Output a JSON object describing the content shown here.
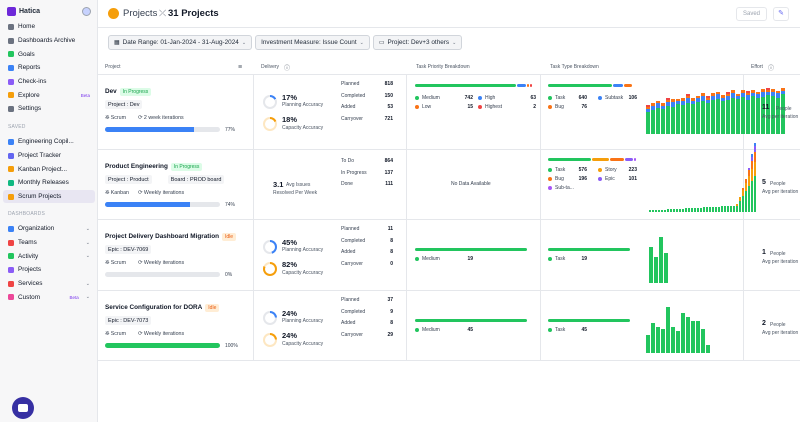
{
  "app": {
    "brand": "Hatica"
  },
  "sidebar": {
    "top": [
      {
        "label": "Home",
        "icon": "home-icon",
        "color": "#6b7280"
      },
      {
        "label": "Dashboards Archive",
        "icon": "archive-icon",
        "color": "#6b7280"
      },
      {
        "label": "Goals",
        "icon": "goals-icon",
        "color": "#22c55e"
      },
      {
        "label": "Reports",
        "icon": "reports-icon",
        "color": "#3b82f6"
      },
      {
        "label": "Check-ins",
        "icon": "checkins-icon",
        "color": "#8b5cf6"
      },
      {
        "label": "Explore",
        "icon": "explore-icon",
        "color": "#f59e0b",
        "badge": "Beta"
      },
      {
        "label": "Settings",
        "icon": "gear-icon",
        "color": "#6b7280"
      }
    ],
    "saved_label": "SAVED",
    "saved": [
      {
        "label": "Engineering Copil...",
        "icon": "dashboard-icon",
        "color": "#3b82f6"
      },
      {
        "label": "Project Tracker",
        "icon": "dashboard-icon",
        "color": "#6366f1"
      },
      {
        "label": "Kanban Project...",
        "icon": "dashboard-icon",
        "color": "#f59e0b"
      },
      {
        "label": "Monthly Releases",
        "icon": "dashboard-icon",
        "color": "#10b981"
      },
      {
        "label": "Scrum Projects",
        "icon": "dashboard-icon",
        "color": "#f59e0b",
        "active": true
      }
    ],
    "dashboards_label": "DASHBOARDS",
    "dashboards": [
      {
        "label": "Organization",
        "icon": "organization-icon",
        "color": "#3b82f6",
        "chevron": "⌄"
      },
      {
        "label": "Teams",
        "icon": "teams-icon",
        "color": "#ef4444",
        "chevron": "⌄"
      },
      {
        "label": "Activity",
        "icon": "activity-icon",
        "color": "#22c55e",
        "chevron": "⌄"
      },
      {
        "label": "Projects",
        "icon": "projects-icon",
        "color": "#8b5cf6"
      },
      {
        "label": "Services",
        "icon": "services-icon",
        "color": "#ef4444",
        "chevron": "⌄"
      },
      {
        "label": "Custom",
        "icon": "custom-icon",
        "color": "#ec4899",
        "badge": "Beta",
        "chevron": "⌄"
      }
    ]
  },
  "header": {
    "title": "Projects",
    "count": "31 Projects",
    "saved": "Saved"
  },
  "filters": [
    {
      "label": "Date Range: 01-Jan-2024 - 31-Aug-2024",
      "icon": "calendar-icon"
    },
    {
      "label": "Investment Measure: Issue Count",
      "icon": ""
    },
    {
      "label": "Project: Dev+3 others",
      "icon": "folder-icon"
    }
  ],
  "columns": {
    "project": "Project",
    "delivery": "Delivery",
    "priority": "Task Priority Breakdown",
    "type": "Task Type Breakdown",
    "effort": "Effort"
  },
  "rows": [
    {
      "name": "Dev",
      "status": "In Progress",
      "tags": [
        "Project : Dev"
      ],
      "method": "Scrum",
      "cadence": "2 week iterations",
      "progress": 77,
      "progress_label": "77%",
      "acc1": "17%",
      "acc1_label": "Planning Accuracy",
      "acc2": "18%",
      "acc2_label": "Capacity Accuracy",
      "stats": [
        {
          "k": "Planned",
          "v": "818"
        },
        {
          "k": "Completed",
          "v": "150"
        },
        {
          "k": "Added",
          "v": "53"
        },
        {
          "k": "Carryover",
          "v": "721"
        }
      ],
      "priority": [
        {
          "k": "Medium",
          "v": "742",
          "c": "#22c55e"
        },
        {
          "k": "High",
          "v": "63",
          "c": "#3b82f6"
        },
        {
          "k": "Low",
          "v": "15",
          "c": "#f97316"
        },
        {
          "k": "Highest",
          "v": "2",
          "c": "#ef4444"
        }
      ],
      "types": [
        {
          "k": "Task",
          "v": "640",
          "c": "#22c55e"
        },
        {
          "k": "Subtask",
          "v": "106",
          "c": "#3b82f6"
        },
        {
          "k": "Bug",
          "v": "76",
          "c": "#f97316"
        }
      ],
      "effort": "11",
      "effort_unit": "People",
      "effort_sub": "Avg per iteration"
    },
    {
      "name": "Product Engineering",
      "status": "In Progress",
      "tags": [
        "Project : Product",
        "Board : PROD board"
      ],
      "method": "Kanban",
      "cadence": "Weekly iterations",
      "progress": 74,
      "progress_label": "74%",
      "issues": "3.1",
      "issues_label": "Avg Issues",
      "issues_sub": "Resolved Per Week",
      "stats": [
        {
          "k": "To Do",
          "v": "864"
        },
        {
          "k": "In Progress",
          "v": "137"
        },
        {
          "k": "Done",
          "v": "111"
        }
      ],
      "no_data": "No Data Available",
      "types": [
        {
          "k": "Task",
          "v": "576",
          "c": "#22c55e"
        },
        {
          "k": "Story",
          "v": "223",
          "c": "#f59e0b"
        },
        {
          "k": "Bug",
          "v": "196",
          "c": "#f97316"
        },
        {
          "k": "Epic",
          "v": "101",
          "c": "#8b5cf6"
        },
        {
          "k": "Sub-ta...",
          "v": "",
          "c": "#a855f7"
        }
      ],
      "effort": "5",
      "effort_unit": "People",
      "effort_sub": "Avg per iteration"
    },
    {
      "name": "Project Delivery Dashboard Migration",
      "status": "Idle",
      "tags": [
        "Epic : DEV-7069"
      ],
      "method": "Scrum",
      "cadence": "Weekly iterations",
      "progress": 0,
      "progress_label": "0%",
      "acc1": "45%",
      "acc1_label": "Planning Accuracy",
      "acc2": "82%",
      "acc2_label": "Capacity Accuracy",
      "stats": [
        {
          "k": "Planned",
          "v": "11"
        },
        {
          "k": "Completed",
          "v": "8"
        },
        {
          "k": "Added",
          "v": "8"
        },
        {
          "k": "Carryover",
          "v": "0"
        }
      ],
      "priority": [
        {
          "k": "Medium",
          "v": "19",
          "c": "#22c55e"
        }
      ],
      "types": [
        {
          "k": "Task",
          "v": "19",
          "c": "#22c55e"
        }
      ],
      "effort": "1",
      "effort_unit": "People",
      "effort_sub": "Avg per iteration"
    },
    {
      "name": "Service Configuration for DORA",
      "status": "Idle",
      "tags": [
        "Epic : DEV-7073"
      ],
      "method": "Scrum",
      "cadence": "Weekly iterations",
      "progress": 100,
      "progress_label": "100%",
      "acc1": "24%",
      "acc1_label": "Planning Accuracy",
      "acc2": "24%",
      "acc2_label": "Capacity Accuracy",
      "stats": [
        {
          "k": "Planned",
          "v": "37"
        },
        {
          "k": "Completed",
          "v": "9"
        },
        {
          "k": "Added",
          "v": "8"
        },
        {
          "k": "Carryover",
          "v": "29"
        }
      ],
      "priority": [
        {
          "k": "Medium",
          "v": "45",
          "c": "#22c55e"
        }
      ],
      "types": [
        {
          "k": "Task",
          "v": "45",
          "c": "#22c55e"
        }
      ],
      "effort": "2",
      "effort_unit": "People",
      "effort_sub": "Avg per iteration"
    }
  ]
}
